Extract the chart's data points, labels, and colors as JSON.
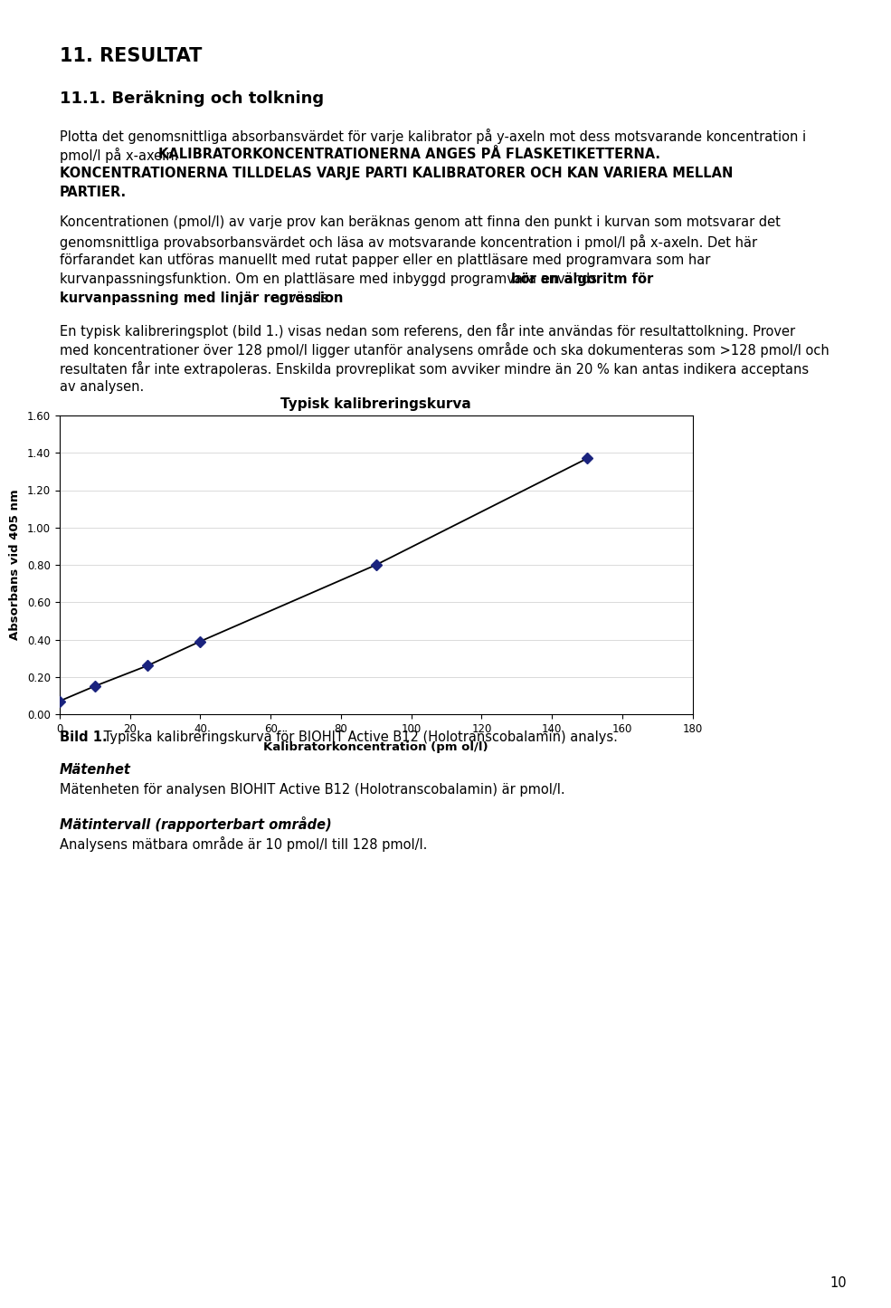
{
  "page_title": "11. RESULTAT",
  "section_title": "11.1. Beräkning och tolkning",
  "chart_title": "Typisk kalibreringskurva",
  "x_data": [
    0,
    10,
    25,
    40,
    90,
    150
  ],
  "y_data": [
    0.07,
    0.15,
    0.26,
    0.39,
    0.8,
    1.37
  ],
  "xlabel": "Kalibratorkoncentration (pm ol/l)",
  "ylabel": "Absorbans vid 405 nm",
  "xlim": [
    0,
    180
  ],
  "ylim": [
    0.0,
    1.6
  ],
  "xticks": [
    0,
    20,
    40,
    60,
    80,
    100,
    120,
    140,
    160,
    180
  ],
  "yticks": [
    0.0,
    0.2,
    0.4,
    0.6,
    0.8,
    1.0,
    1.2,
    1.4,
    1.6
  ],
  "marker_color": "#1a237e",
  "line_color": "#000000",
  "page_number": "10",
  "background_color": "#ffffff",
  "text_color": "#000000"
}
